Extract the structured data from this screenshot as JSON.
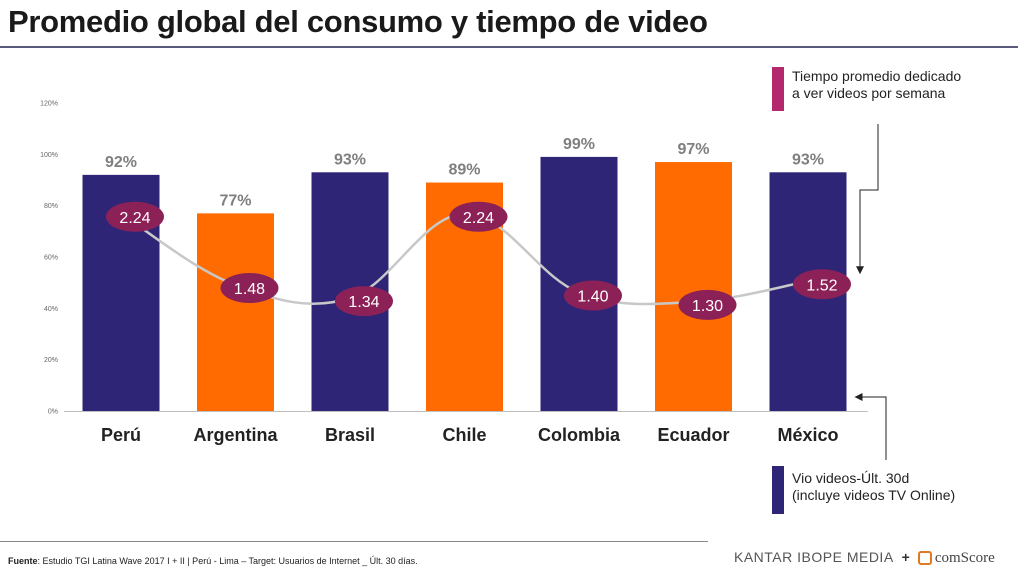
{
  "title": "Promedio global del consumo y tiempo de video",
  "legend": {
    "line_label_1": "Tiempo promedio dedicado",
    "line_label_2": "a ver videos por semana",
    "bar_label_1": "Vio videos-Últ. 30d",
    "bar_label_2": "(incluye videos TV Online)"
  },
  "footer": {
    "source_prefix": "Fuente",
    "source_text": ": Estudio TGI Latina Wave 2017 I + II | Perú - Lima – Target: Usuarios de Internet _ Últ. 30 días.",
    "logo_kantar": "KANTAR IBOPE MEDIA",
    "logo_plus": "+",
    "logo_comscore": "comScore"
  },
  "colors": {
    "navy": "#2e2577",
    "orange": "#ff6b00",
    "bubble": "#8c2157",
    "line": "#c8c8c8",
    "legend_magenta": "#b4286e"
  },
  "chart_data": {
    "type": "bar",
    "title": "Promedio global del consumo y tiempo de video",
    "xlabel": "",
    "ylabel": "",
    "ylim": [
      0,
      120
    ],
    "yticks": [
      "0%",
      "20%",
      "40%",
      "60%",
      "80%",
      "100%",
      "120%"
    ],
    "categories": [
      "Perú",
      "Argentina",
      "Brasil",
      "Chile",
      "Colombia",
      "Ecuador",
      "México"
    ],
    "bar_colors": [
      "navy",
      "orange",
      "navy",
      "orange",
      "navy",
      "orange",
      "navy"
    ],
    "series": [
      {
        "name": "Vio videos-Últ. 30d (incluye videos TV Online)",
        "type": "bar",
        "values": [
          92,
          77,
          93,
          89,
          99,
          97,
          93
        ],
        "labels": [
          "92%",
          "77%",
          "93%",
          "89%",
          "99%",
          "97%",
          "93%"
        ]
      },
      {
        "name": "Tiempo promedio dedicado a ver videos por semana",
        "type": "line",
        "values": [
          2.24,
          1.48,
          1.34,
          2.24,
          1.4,
          1.3,
          1.52
        ],
        "labels": [
          "2.24",
          "1.48",
          "1.34",
          "2.24",
          "1.40",
          "1.30",
          "1.52"
        ]
      }
    ]
  }
}
